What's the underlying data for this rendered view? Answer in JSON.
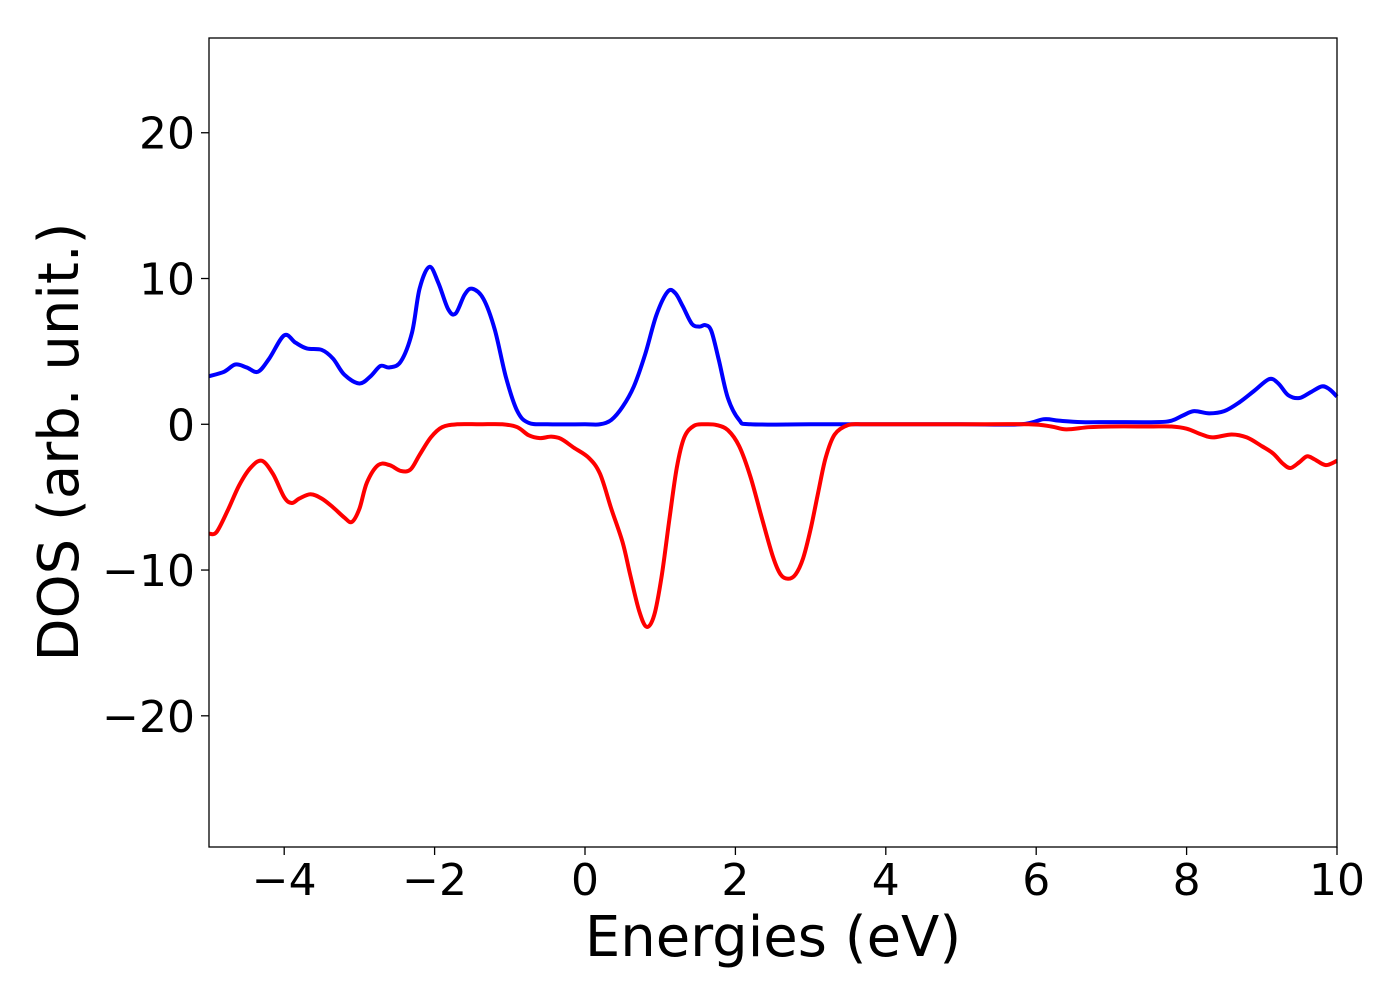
{
  "chart_data": {
    "type": "line",
    "title": "",
    "xlabel": "Energies (eV)",
    "ylabel": "DOS (arb. unit.)",
    "xlim": [
      -5,
      10
    ],
    "ylim": [
      -29,
      26.5
    ],
    "xticks": [
      -4,
      -2,
      0,
      2,
      4,
      6,
      8,
      10
    ],
    "yticks": [
      20,
      10,
      0,
      -10,
      -20
    ],
    "xtick_labels": [
      "−4",
      "−2",
      "0",
      "2",
      "4",
      "6",
      "8",
      "10"
    ],
    "ytick_labels": [
      "20",
      "10",
      "0",
      "−10",
      "−20"
    ],
    "grid": false,
    "legend": "none",
    "series": [
      {
        "color": "#0000ff",
        "points": [
          [
            -5.0,
            3.3
          ],
          [
            -4.8,
            3.6
          ],
          [
            -4.65,
            4.1
          ],
          [
            -4.5,
            3.9
          ],
          [
            -4.35,
            3.6
          ],
          [
            -4.2,
            4.5
          ],
          [
            -4.0,
            6.1
          ],
          [
            -3.85,
            5.6
          ],
          [
            -3.7,
            5.2
          ],
          [
            -3.5,
            5.1
          ],
          [
            -3.35,
            4.5
          ],
          [
            -3.2,
            3.4
          ],
          [
            -3.0,
            2.8
          ],
          [
            -2.85,
            3.3
          ],
          [
            -2.72,
            4.0
          ],
          [
            -2.6,
            3.9
          ],
          [
            -2.45,
            4.3
          ],
          [
            -2.3,
            6.3
          ],
          [
            -2.2,
            9.3
          ],
          [
            -2.07,
            10.8
          ],
          [
            -1.95,
            9.7
          ],
          [
            -1.82,
            7.9
          ],
          [
            -1.72,
            7.6
          ],
          [
            -1.6,
            8.9
          ],
          [
            -1.5,
            9.3
          ],
          [
            -1.35,
            8.6
          ],
          [
            -1.2,
            6.5
          ],
          [
            -1.05,
            3.2
          ],
          [
            -0.9,
            0.9
          ],
          [
            -0.75,
            0.1
          ],
          [
            -0.5,
            0.0
          ],
          [
            0.0,
            0.0
          ],
          [
            0.2,
            0.0
          ],
          [
            0.35,
            0.3
          ],
          [
            0.5,
            1.2
          ],
          [
            0.65,
            2.6
          ],
          [
            0.8,
            4.8
          ],
          [
            0.95,
            7.5
          ],
          [
            1.1,
            9.1
          ],
          [
            1.2,
            9.0
          ],
          [
            1.3,
            8.1
          ],
          [
            1.42,
            6.9
          ],
          [
            1.52,
            6.7
          ],
          [
            1.6,
            6.8
          ],
          [
            1.68,
            6.4
          ],
          [
            1.78,
            4.4
          ],
          [
            1.9,
            1.8
          ],
          [
            2.05,
            0.3
          ],
          [
            2.2,
            0.0
          ],
          [
            3.0,
            0.0
          ],
          [
            4.0,
            0.0
          ],
          [
            5.0,
            0.0
          ],
          [
            5.8,
            0.0
          ],
          [
            6.1,
            0.35
          ],
          [
            6.3,
            0.25
          ],
          [
            6.6,
            0.15
          ],
          [
            7.0,
            0.15
          ],
          [
            7.6,
            0.15
          ],
          [
            7.8,
            0.25
          ],
          [
            7.95,
            0.6
          ],
          [
            8.1,
            0.9
          ],
          [
            8.3,
            0.75
          ],
          [
            8.5,
            0.9
          ],
          [
            8.7,
            1.5
          ],
          [
            8.9,
            2.3
          ],
          [
            9.1,
            3.1
          ],
          [
            9.22,
            2.8
          ],
          [
            9.35,
            2.0
          ],
          [
            9.5,
            1.8
          ],
          [
            9.65,
            2.2
          ],
          [
            9.8,
            2.6
          ],
          [
            9.9,
            2.4
          ],
          [
            10.0,
            1.9
          ]
        ]
      },
      {
        "color": "#ff0000",
        "points": [
          [
            -5.0,
            -7.5
          ],
          [
            -4.9,
            -7.4
          ],
          [
            -4.75,
            -5.9
          ],
          [
            -4.6,
            -4.2
          ],
          [
            -4.45,
            -3.0
          ],
          [
            -4.3,
            -2.5
          ],
          [
            -4.15,
            -3.4
          ],
          [
            -4.0,
            -5.0
          ],
          [
            -3.9,
            -5.4
          ],
          [
            -3.8,
            -5.1
          ],
          [
            -3.65,
            -4.8
          ],
          [
            -3.5,
            -5.1
          ],
          [
            -3.35,
            -5.7
          ],
          [
            -3.2,
            -6.4
          ],
          [
            -3.1,
            -6.7
          ],
          [
            -3.0,
            -5.8
          ],
          [
            -2.9,
            -4.0
          ],
          [
            -2.75,
            -2.8
          ],
          [
            -2.6,
            -2.8
          ],
          [
            -2.45,
            -3.2
          ],
          [
            -2.32,
            -3.1
          ],
          [
            -2.2,
            -2.1
          ],
          [
            -2.05,
            -0.9
          ],
          [
            -1.9,
            -0.2
          ],
          [
            -1.7,
            0.0
          ],
          [
            -1.4,
            0.0
          ],
          [
            -1.1,
            0.0
          ],
          [
            -0.9,
            -0.2
          ],
          [
            -0.75,
            -0.75
          ],
          [
            -0.6,
            -0.95
          ],
          [
            -0.45,
            -0.85
          ],
          [
            -0.32,
            -1.0
          ],
          [
            -0.15,
            -1.6
          ],
          [
            0.05,
            -2.3
          ],
          [
            0.2,
            -3.4
          ],
          [
            0.35,
            -5.8
          ],
          [
            0.5,
            -8.1
          ],
          [
            0.6,
            -10.3
          ],
          [
            0.72,
            -12.8
          ],
          [
            0.82,
            -13.9
          ],
          [
            0.92,
            -13.1
          ],
          [
            1.02,
            -10.4
          ],
          [
            1.12,
            -6.6
          ],
          [
            1.22,
            -3.0
          ],
          [
            1.32,
            -0.9
          ],
          [
            1.45,
            -0.1
          ],
          [
            1.6,
            0.0
          ],
          [
            1.75,
            -0.05
          ],
          [
            1.9,
            -0.4
          ],
          [
            2.05,
            -1.5
          ],
          [
            2.2,
            -3.6
          ],
          [
            2.35,
            -6.4
          ],
          [
            2.5,
            -9.1
          ],
          [
            2.6,
            -10.3
          ],
          [
            2.7,
            -10.6
          ],
          [
            2.8,
            -10.3
          ],
          [
            2.9,
            -9.2
          ],
          [
            3.0,
            -7.2
          ],
          [
            3.1,
            -4.7
          ],
          [
            3.2,
            -2.3
          ],
          [
            3.32,
            -0.7
          ],
          [
            3.5,
            -0.05
          ],
          [
            3.7,
            0.0
          ],
          [
            4.0,
            0.0
          ],
          [
            5.0,
            0.0
          ],
          [
            5.9,
            0.0
          ],
          [
            6.2,
            -0.15
          ],
          [
            6.4,
            -0.35
          ],
          [
            6.7,
            -0.2
          ],
          [
            7.0,
            -0.15
          ],
          [
            7.5,
            -0.15
          ],
          [
            7.8,
            -0.15
          ],
          [
            8.0,
            -0.3
          ],
          [
            8.2,
            -0.7
          ],
          [
            8.35,
            -0.9
          ],
          [
            8.6,
            -0.7
          ],
          [
            8.8,
            -0.9
          ],
          [
            9.0,
            -1.5
          ],
          [
            9.15,
            -2.0
          ],
          [
            9.28,
            -2.7
          ],
          [
            9.38,
            -3.0
          ],
          [
            9.5,
            -2.6
          ],
          [
            9.6,
            -2.2
          ],
          [
            9.7,
            -2.4
          ],
          [
            9.85,
            -2.8
          ],
          [
            10.0,
            -2.5
          ]
        ]
      }
    ]
  }
}
